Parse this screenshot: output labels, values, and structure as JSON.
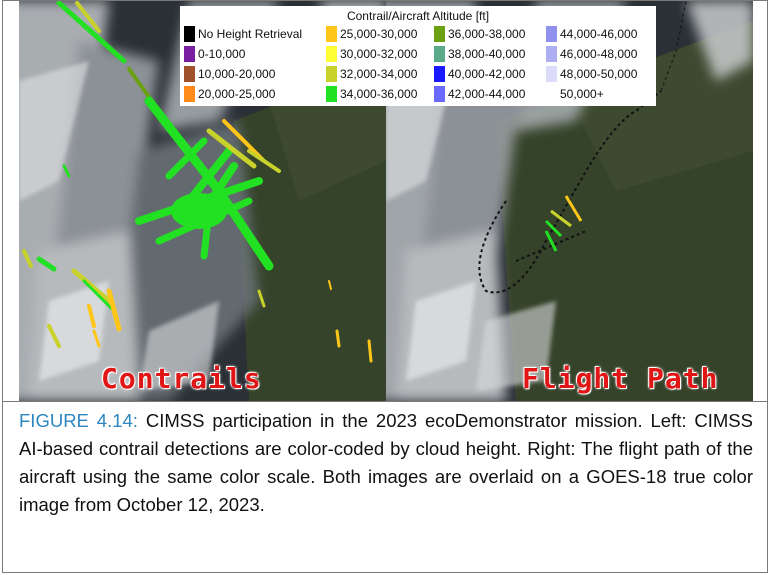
{
  "legend": {
    "title": "Contrail/Aircraft Altitude [ft]",
    "items": [
      {
        "label": "No Height Retrieval",
        "color": "#000000"
      },
      {
        "label": "0-10,000",
        "color": "#7b1fa2"
      },
      {
        "label": "10,000-20,000",
        "color": "#a0522d"
      },
      {
        "label": "20,000-25,000",
        "color": "#ff8c1a"
      },
      {
        "label": "25,000-30,000",
        "color": "#ffc61a"
      },
      {
        "label": "30,000-32,000",
        "color": "#ffff33"
      },
      {
        "label": "32,000-34,000",
        "color": "#c8d22a"
      },
      {
        "label": "34,000-36,000",
        "color": "#22e022"
      },
      {
        "label": "36,000-38,000",
        "color": "#6aa012"
      },
      {
        "label": "38,000-40,000",
        "color": "#5aaa8a"
      },
      {
        "label": "40,000-42,000",
        "color": "#1a1aff"
      },
      {
        "label": "42,000-44,000",
        "color": "#6a6aff"
      },
      {
        "label": "44,000-46,000",
        "color": "#9090ee"
      },
      {
        "label": "46,000-48,000",
        "color": "#aeaef2"
      },
      {
        "label": "48,000-50,000",
        "color": "#dcdcfa"
      },
      {
        "label": "50,000+",
        "color": "#ffffff"
      }
    ]
  },
  "panels": {
    "left_label": "Contrails",
    "right_label": "Flight Path"
  },
  "caption": {
    "label": "FIGURE 4.14:",
    "text": " CIMSS participation in the 2023 ecoDemonstrator mission. Left: CIMSS AI-based contrail detections are color-coded by cloud height. Right: The flight path of the aircraft using the same color scale. Both images are overlaid on a GOES-18 true color image from October 12, 2023."
  }
}
